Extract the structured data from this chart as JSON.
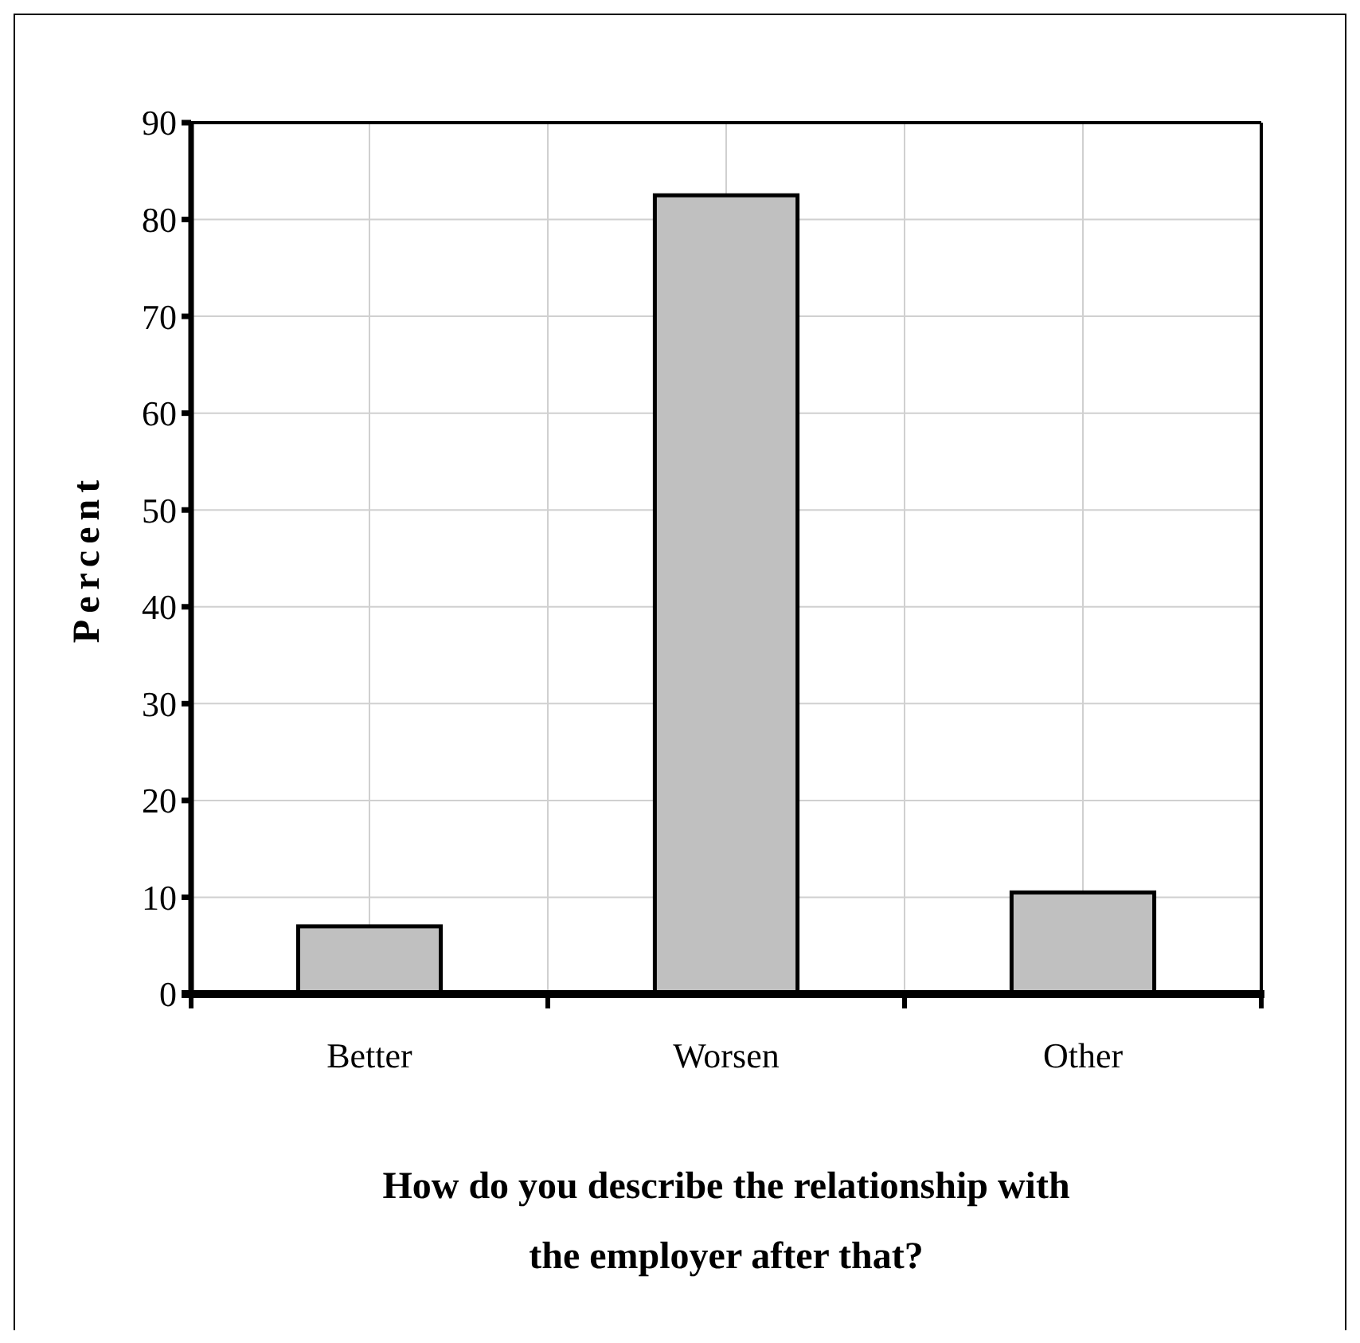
{
  "chart_data": {
    "type": "bar",
    "xlabel": "How do you describe the relationship with the employer after that?",
    "ylabel": "Percent",
    "categories": [
      "Better",
      "Worsen",
      "Other"
    ],
    "values": [
      7.0,
      82.5,
      10.5
    ],
    "color": "#c0c0c0",
    "ylim": [
      0,
      90
    ],
    "yticks": [
      0,
      10,
      20,
      30,
      40,
      50,
      60,
      70,
      80,
      90
    ],
    "grid": true
  }
}
